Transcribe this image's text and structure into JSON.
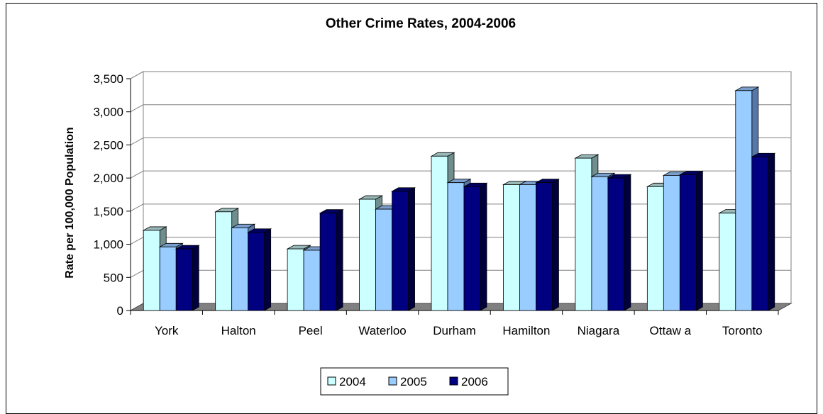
{
  "chart_data": {
    "type": "bar",
    "title": "Other Crime Rates, 2004-2006",
    "xlabel": "",
    "ylabel": "Rate per 100,000 Population",
    "ylim": [
      0,
      3500
    ],
    "yticks": [
      "0",
      "500",
      "1,000",
      "1,500",
      "2,000",
      "2,500",
      "3,000",
      "3,500"
    ],
    "categories": [
      "York",
      "Halton",
      "Peel",
      "Waterloo",
      "Durham",
      "Hamilton",
      "Niagara",
      "Ottaw a",
      "Toronto"
    ],
    "series": [
      {
        "name": "2004",
        "color": "#CCFFFF",
        "values": [
          1210,
          1490,
          930,
          1680,
          2330,
          1900,
          2300,
          1870,
          1470
        ]
      },
      {
        "name": "2005",
        "color": "#99CCFF",
        "values": [
          960,
          1250,
          910,
          1530,
          1930,
          1900,
          2020,
          2040,
          3320
        ]
      },
      {
        "name": "2006",
        "color": "#000080",
        "values": [
          930,
          1180,
          1470,
          1800,
          1870,
          1930,
          2000,
          2050,
          2320
        ]
      }
    ],
    "grid": true,
    "legend_position": "bottom"
  }
}
